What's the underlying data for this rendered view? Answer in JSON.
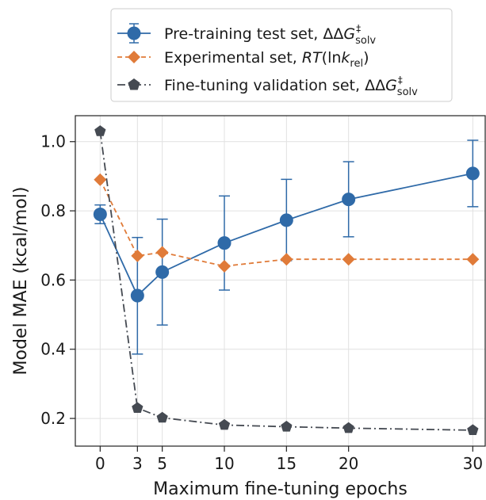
{
  "chart_data": {
    "type": "line",
    "xlabel": "Maximum fine-tuning epochs",
    "ylabel": "Model MAE (kcal/mol)",
    "xlim": [
      -2,
      31
    ],
    "ylim": [
      0.12,
      1.075
    ],
    "xticks": [
      0,
      3,
      5,
      10,
      15,
      20,
      30
    ],
    "xtick_labels": [
      "0",
      "3",
      "5",
      "10",
      "15",
      "20",
      "30"
    ],
    "yticks": [
      0.2,
      0.4,
      0.6,
      0.8,
      1.0
    ],
    "ytick_labels": [
      "0.2",
      "0.4",
      "0.6",
      "0.8",
      "1.0"
    ],
    "grid": true,
    "legend_position": "top-center, above plot",
    "series": [
      {
        "name": "Pre-training test set, ΔΔG‡solv",
        "legend": {
          "main": "Pre-training test set, ΔΔ",
          "var": "G",
          "sup": "‡",
          "sub": "solv"
        },
        "x": [
          0,
          3,
          5,
          10,
          15,
          20,
          30
        ],
        "values": [
          0.79,
          0.555,
          0.623,
          0.707,
          0.773,
          0.833,
          0.908
        ],
        "err_low": [
          0.763,
          0.386,
          0.47,
          0.571,
          0.656,
          0.725,
          0.812
        ],
        "err_high": [
          0.817,
          0.723,
          0.776,
          0.843,
          0.891,
          0.942,
          1.004
        ],
        "color": "#2f6aa8",
        "marker": "circle",
        "linestyle": "solid"
      },
      {
        "name": "Experimental set, RT(lnk_rel)",
        "legend": {
          "main": "Experimental set, ",
          "var": "RT",
          "mid": "(ln",
          "var2": "k",
          "sub": "rel",
          "end": ")"
        },
        "x": [
          0,
          3,
          5,
          10,
          15,
          20,
          30
        ],
        "values": [
          0.89,
          0.67,
          0.68,
          0.64,
          0.66,
          0.66,
          0.66
        ],
        "color": "#e07b39",
        "marker": "diamond",
        "linestyle": "dashed"
      },
      {
        "name": "Fine-tuning validation set, ΔΔG‡solv",
        "legend": {
          "main": "Fine-tuning validation set, ΔΔ",
          "var": "G",
          "sup": "‡",
          "sub": "solv"
        },
        "x": [
          0,
          3,
          5,
          10,
          15,
          20,
          30
        ],
        "values": [
          1.03,
          0.23,
          0.202,
          0.181,
          0.176,
          0.172,
          0.166
        ],
        "color": "#454a52",
        "marker": "pentagon",
        "linestyle": "dashdot"
      }
    ]
  }
}
